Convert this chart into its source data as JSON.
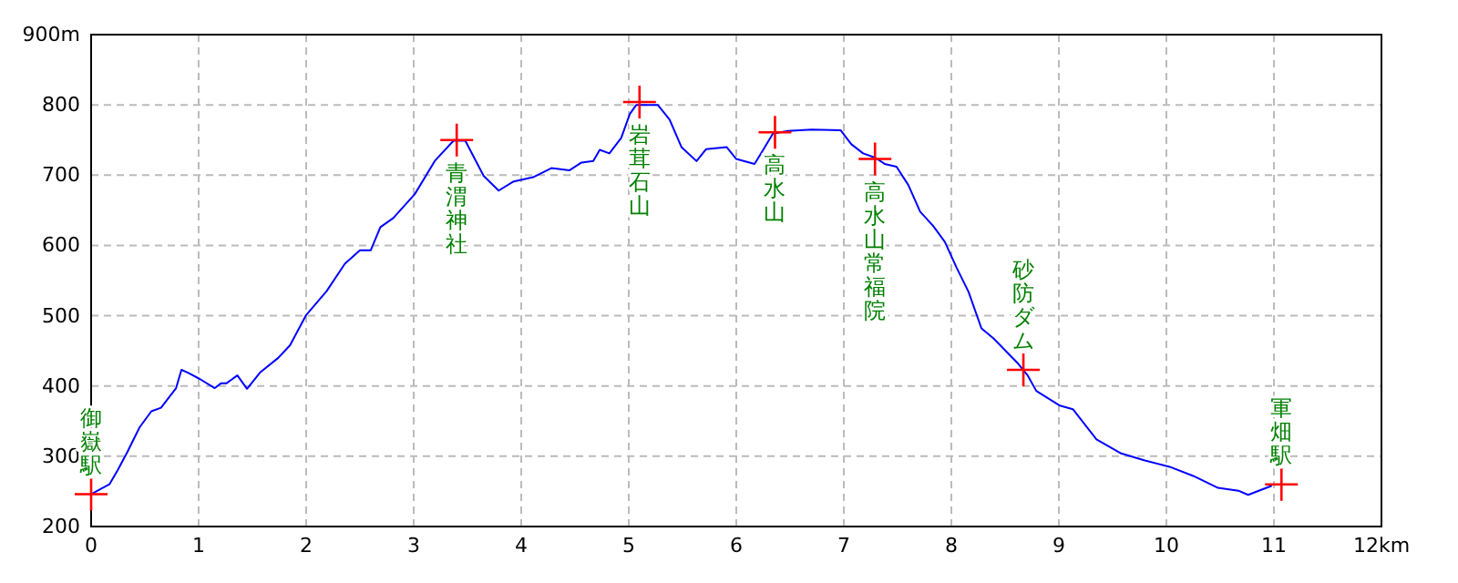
{
  "chart_data": {
    "type": "line",
    "xlim": [
      0,
      12
    ],
    "ylim": [
      200,
      900
    ],
    "xticks": [
      0,
      1,
      2,
      3,
      4,
      5,
      6,
      7,
      8,
      9,
      10,
      11,
      {
        "value": 12,
        "label": "12km"
      }
    ],
    "yticks": [
      200,
      300,
      400,
      500,
      600,
      700,
      800,
      {
        "value": 900,
        "label": "900m"
      }
    ],
    "grid": true,
    "line_style": "solid",
    "series": [
      {
        "color": "#0000ff",
        "x": [
          0,
          0.06,
          0.17,
          0.25,
          0.34,
          0.45,
          0.56,
          0.65,
          0.79,
          0.84,
          0.9,
          1.01,
          1.15,
          1.21,
          1.26,
          1.36,
          1.45,
          1.57,
          1.74,
          1.85,
          2.0,
          2.19,
          2.36,
          2.5,
          2.6,
          2.69,
          2.81,
          3.01,
          3.2,
          3.37,
          3.48,
          3.65,
          3.79,
          3.93,
          4.11,
          4.28,
          4.45,
          4.56,
          4.67,
          4.73,
          4.82,
          4.93,
          5.01,
          5.07,
          5.27,
          5.38,
          5.49,
          5.63,
          5.72,
          5.91,
          6.0,
          6.17,
          6.25,
          6.34,
          6.48,
          6.7,
          6.97,
          7.07,
          7.18,
          7.29,
          7.38,
          7.49,
          7.6,
          7.71,
          7.83,
          7.94,
          8.05,
          8.16,
          8.28,
          8.39,
          8.62,
          8.71,
          8.79,
          9.01,
          9.13,
          9.35,
          9.58,
          9.8,
          10.03,
          10.25,
          10.48,
          10.67,
          10.76,
          10.98
        ],
        "values": [
          246,
          251,
          260,
          281,
          307,
          341,
          364,
          369,
          397,
          423,
          419,
          410,
          397,
          404,
          404,
          415,
          396,
          419,
          440,
          458,
          501,
          535,
          574,
          593,
          593,
          626,
          639,
          673,
          721,
          749,
          749,
          699,
          678,
          691,
          697,
          710,
          707,
          718,
          720,
          736,
          731,
          753,
          787,
          800,
          800,
          779,
          740,
          720,
          737,
          740,
          723,
          716,
          736,
          759,
          763,
          765,
          764,
          744,
          731,
          725,
          716,
          712,
          686,
          648,
          628,
          605,
          568,
          534,
          482,
          468,
          432,
          415,
          393,
          372,
          367,
          324,
          304,
          294,
          285,
          272,
          255,
          251,
          245,
          258
        ]
      },
      {
        "type": "scatter",
        "color": "#ff0000",
        "marker": "cross",
        "x": [
          0,
          3.4,
          5.1,
          6.36,
          7.29,
          8.67,
          11.07
        ],
        "values": [
          246,
          750,
          804,
          761,
          723,
          423,
          260
        ]
      }
    ],
    "annotations": [
      {
        "text": "御嶽駅",
        "x": 0,
        "y": 246
      },
      {
        "text": "青渭神社",
        "x": 3.4,
        "y": 750
      },
      {
        "text": "岩茸石山",
        "x": 5.1,
        "y": 804
      },
      {
        "text": "高水山",
        "x": 6.36,
        "y": 761
      },
      {
        "text": "高水山常福院",
        "x": 7.29,
        "y": 723
      },
      {
        "text": "砂防ダム",
        "x": 8.67,
        "y": 423
      },
      {
        "text": "軍畑駅",
        "x": 11.07,
        "y": 260
      }
    ]
  }
}
